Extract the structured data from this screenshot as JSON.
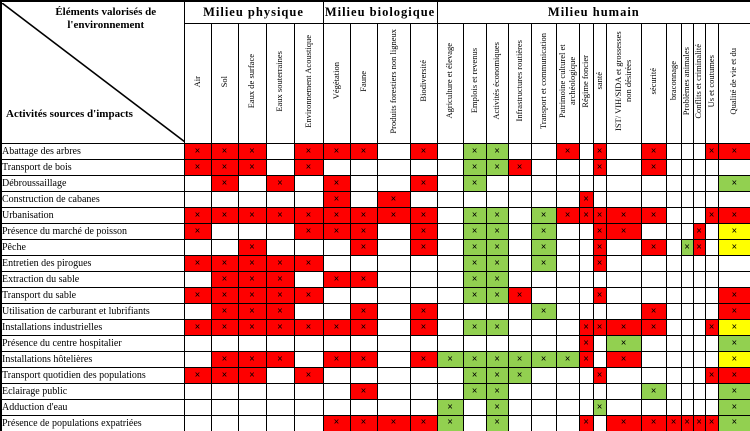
{
  "table": {
    "corner": {
      "top_label": "Éléments valorisés de l'environnement",
      "bottom_label": "Activités sources d'impacts"
    },
    "groups": [
      {
        "label": "Milieu physique",
        "span": 5
      },
      {
        "label": "Milieu  biologique",
        "span": 4
      },
      {
        "label": "Milieu  humain",
        "span": 15
      }
    ],
    "columns": [
      "Air",
      "Sol",
      "Eaux de surface",
      "Eaux souterraines",
      "Environnement Acoustique",
      "Végétation",
      "Faune",
      "Produits  forestiers non ligneux",
      "Biodiversité",
      "Agriculture et élevage",
      "Emplois et revenus",
      "Activités  économiques",
      "Infrastructures  routières",
      "Transport et communication",
      "Patrimoine culturel et archéologique",
      "Régime foncier",
      "santé",
      "IST/ VIH/SIDA et grossesses   non désirées",
      "sécurité",
      "braconnage",
      "Problèmes animales",
      "Conflits et criminalité",
      "Us  et  coutumes",
      "Qualité de vie et du"
    ],
    "mark": "×",
    "colors": {
      "R": "#fe0000",
      "G": "#92d050",
      "Y": "#ffff00",
      "W": "#ffffff"
    },
    "rows": [
      {
        "label": "Abattage des arbres",
        "cells": "RRRWRRRWRWGGWWRWRWRWWWRR"
      },
      {
        "label": "Transport de bois",
        "cells": "RRRWRWWWWWGGRWWWRWRWWWWW"
      },
      {
        "label": "Débroussaillage",
        "cells": "WRWRWRWWRWGWWWWWWWWWWWWG"
      },
      {
        "label": "Construction de cabanes",
        "cells": "WWWWWRWRWWWWWWWRWWWWWWWW"
      },
      {
        "label": "Urbanisation",
        "cells": "RRRRRRRRRWGGWGRRRRRWWWRR"
      },
      {
        "label": "Présence du marché de poisson",
        "cells": "RWWWRRRWRWGGWGWWRRWWWRWY"
      },
      {
        "label": "Pêche",
        "cells": "WWRWWWRWRWGGWGWWRWRWGRWY"
      },
      {
        "label": "Entretien des pirogues",
        "cells": "RRRRRWWWWWGGWGWWRWWWWWWW"
      },
      {
        "label": "Extraction du sable",
        "cells": "WRRRWRRWWWGGWWWWWWWWWWWW"
      },
      {
        "label": "Transport du sable",
        "cells": "RRRRRWWWWWGGRWWWRWWWWWWR"
      },
      {
        "label": "Utilisation de carburant et lubrifiants",
        "cells": "WRRRWWRWRWWWWGWWWWRWWWWR"
      },
      {
        "label": "Installations  industrielles",
        "cells": "RRRRRRRWRWGGWWWRRRRWWWRY"
      },
      {
        "label": "Présence du centre hospitalier",
        "cells": "WWWWWWWWWWWWWWWRWGWWWWWG"
      },
      {
        "label": "Installations  hôtelières",
        "cells": "WRRRWRRWRGGGGGGRWRWWWWWY"
      },
      {
        "label": "Transport quotidien des populations",
        "cells": "RRRWRWWWWWGGGWWWRWWWWWRR"
      },
      {
        "label": "Eclairage public",
        "cells": "WWWWWWRWWWGGWWWWWWGWWWWG"
      },
      {
        "label": "Adduction d'eau",
        "cells": "WWWWWWWWWGWGWWWWGWWWWWWG"
      },
      {
        "label": "Présence de populations expatriées",
        "cells": "WWWWWRRRRGWGWWWRWRRRRRRG"
      }
    ]
  }
}
